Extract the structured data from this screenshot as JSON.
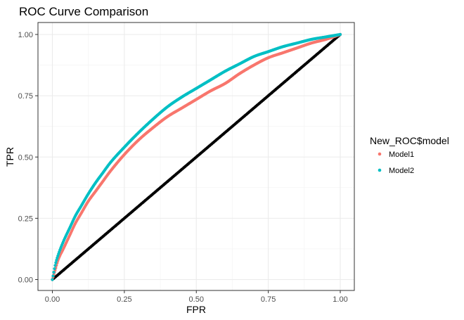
{
  "chart_data": {
    "type": "scatter",
    "title": "ROC Curve Comparison",
    "xlabel": "FPR",
    "ylabel": "TPR",
    "xlim": [
      0,
      1
    ],
    "ylim": [
      0,
      1
    ],
    "x_ticks": [
      "0.00",
      "0.25",
      "0.50",
      "0.75",
      "1.00"
    ],
    "y_ticks": [
      "0.00",
      "0.25",
      "0.50",
      "0.75",
      "1.00"
    ],
    "grid": true,
    "legend": {
      "title": "New_ROC$model",
      "position": "right"
    },
    "series": [
      {
        "name": "Model1",
        "color": "#F8766D",
        "x": [
          0,
          0.01,
          0.02,
          0.04,
          0.06,
          0.08,
          0.1,
          0.125,
          0.15,
          0.175,
          0.2,
          0.25,
          0.3,
          0.35,
          0.4,
          0.45,
          0.5,
          0.55,
          0.6,
          0.65,
          0.7,
          0.75,
          0.8,
          0.85,
          0.9,
          0.95,
          1.0
        ],
        "y": [
          0,
          0.04,
          0.08,
          0.13,
          0.18,
          0.23,
          0.27,
          0.32,
          0.36,
          0.4,
          0.44,
          0.51,
          0.57,
          0.62,
          0.665,
          0.7,
          0.735,
          0.77,
          0.8,
          0.84,
          0.875,
          0.905,
          0.925,
          0.945,
          0.965,
          0.98,
          1.0
        ]
      },
      {
        "name": "Model2",
        "color": "#00BFC4",
        "x": [
          0,
          0.01,
          0.02,
          0.04,
          0.06,
          0.08,
          0.1,
          0.125,
          0.15,
          0.175,
          0.2,
          0.25,
          0.3,
          0.35,
          0.4,
          0.45,
          0.5,
          0.55,
          0.6,
          0.65,
          0.7,
          0.75,
          0.8,
          0.85,
          0.9,
          0.95,
          1.0
        ],
        "y": [
          0,
          0.06,
          0.1,
          0.16,
          0.21,
          0.26,
          0.3,
          0.35,
          0.395,
          0.435,
          0.475,
          0.54,
          0.6,
          0.655,
          0.705,
          0.745,
          0.78,
          0.815,
          0.85,
          0.88,
          0.91,
          0.93,
          0.95,
          0.965,
          0.98,
          0.99,
          1.0
        ]
      },
      {
        "name": "",
        "color": "#000000",
        "x": [
          0,
          1
        ],
        "y": [
          0,
          1
        ]
      }
    ]
  }
}
